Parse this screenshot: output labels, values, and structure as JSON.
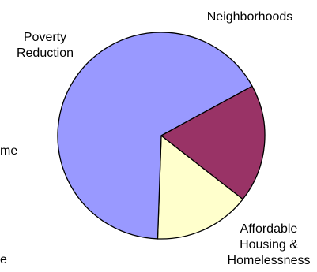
{
  "chart_data": {
    "type": "pie",
    "slices": [
      {
        "label": "Neighborhoods",
        "label_lines": [
          "Neighborhoods"
        ],
        "value": 15,
        "color": "#FFFFCC"
      },
      {
        "label": "Affordable Housing & Homelessness",
        "label_lines": [
          "Affordable",
          "Housing &",
          "Homelessness"
        ],
        "value": 66.5,
        "color": "#9999FF"
      },
      {
        "label": "Poverty Reduction",
        "label_lines": [
          "Poverty",
          "Reduction"
        ],
        "value": 18.5,
        "color": "#993366"
      }
    ],
    "cropped_text_fragments": [
      "me",
      "e"
    ],
    "title": "",
    "legend": "none"
  }
}
